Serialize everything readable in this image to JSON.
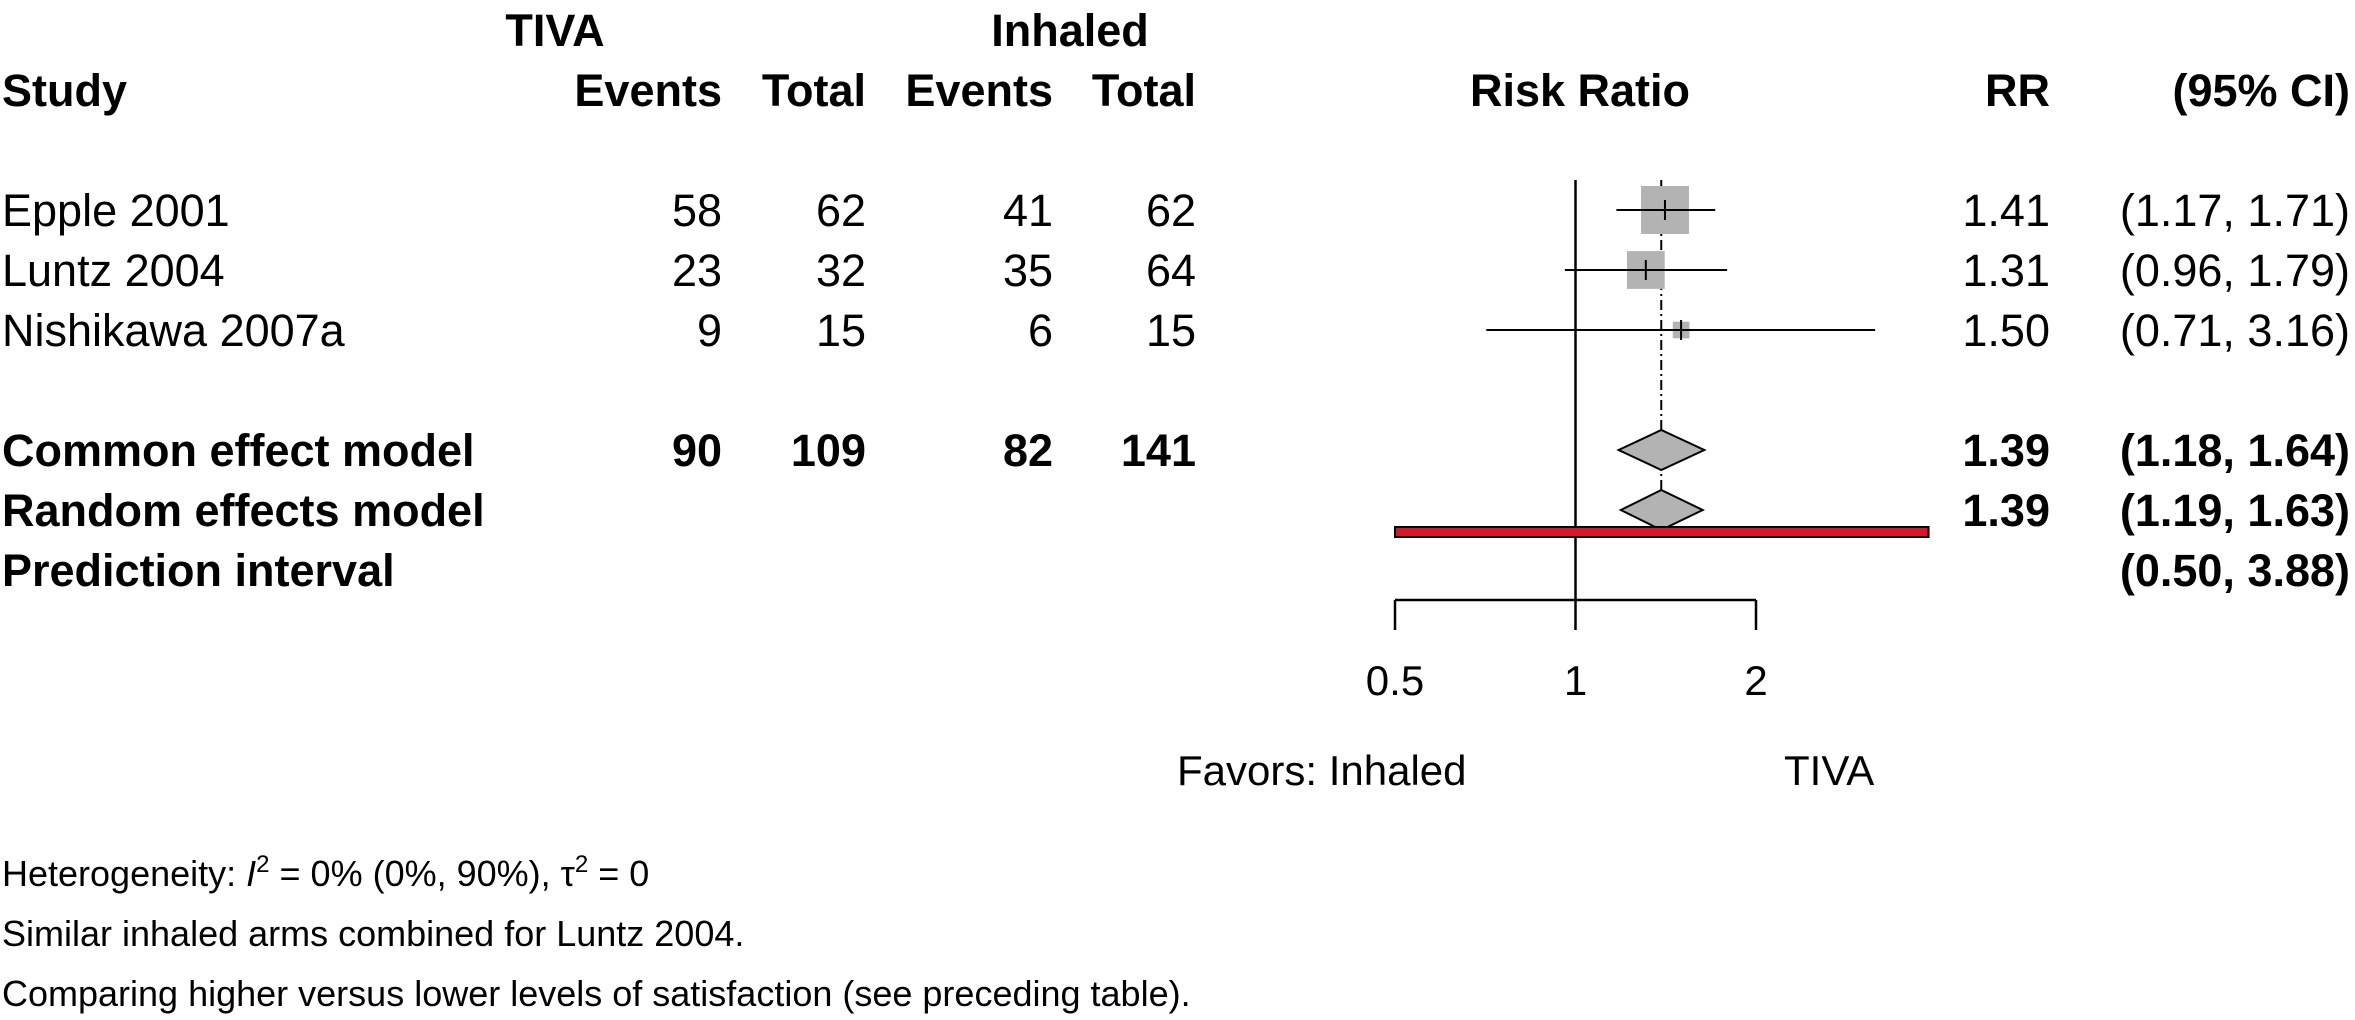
{
  "headers": {
    "tiva": "TIVA",
    "inhaled": "Inhaled",
    "study": "Study",
    "events1": "Events",
    "total1": "Total",
    "events2": "Events",
    "total2": "Total",
    "risk_ratio": "Risk Ratio",
    "rr": "RR",
    "ci": "(95% CI)"
  },
  "studies": [
    {
      "name": "Epple 2001",
      "e1": "58",
      "t1": "62",
      "e2": "41",
      "t2": "62",
      "rr": "1.41",
      "ci": "(1.17, 1.71)"
    },
    {
      "name": "Luntz 2004",
      "e1": "23",
      "t1": "32",
      "e2": "35",
      "t2": "64",
      "rr": "1.31",
      "ci": "(0.96, 1.79)"
    },
    {
      "name": "Nishikawa 2007a",
      "e1": "9",
      "t1": "15",
      "e2": "6",
      "t2": "15",
      "rr": "1.50",
      "ci": "(0.71, 3.16)"
    }
  ],
  "summary": [
    {
      "name": "Common effect model",
      "e1": "90",
      "t1": "109",
      "e2": "82",
      "t2": "141",
      "rr": "1.39",
      "ci": "(1.18, 1.64)"
    },
    {
      "name": "Random effects model",
      "e1": "",
      "t1": "",
      "e2": "",
      "t2": "",
      "rr": "1.39",
      "ci": "(1.19, 1.63)"
    },
    {
      "name": "Prediction interval",
      "e1": "",
      "t1": "",
      "e2": "",
      "t2": "",
      "rr": "",
      "ci": "(0.50, 3.88)"
    }
  ],
  "axis": {
    "labels": {
      "left": "Favors: Inhaled",
      "right": "TIVA"
    }
  },
  "footnotes": {
    "het_prefix": "Heterogeneity: ",
    "het_i": "I",
    "het_sup1": "2",
    "het_mid": " = 0% (0%, 90%), ",
    "het_tau": "τ",
    "het_sup2": "2",
    "het_end": " = 0",
    "line2": "Similar inhaled arms combined for Luntz 2004.",
    "line3": "Comparing higher versus lower levels of satisfaction (see preceding table)."
  },
  "colors": {
    "square": "#b3b3b3",
    "diamond": "#b3b3b3",
    "prediction": "#d9172a",
    "line": "#000000"
  },
  "chart_data": {
    "type": "forest",
    "title": "Risk Ratio",
    "xscale": "log",
    "xlim": [
      0.5,
      2
    ],
    "xticks": [
      0.5,
      1,
      2
    ],
    "xtick_labels": [
      "0.5",
      "1",
      "2"
    ],
    "reference_line": 1,
    "studies": [
      {
        "label": "Epple 2001",
        "rr": 1.41,
        "lower": 1.17,
        "upper": 1.71,
        "weight": 1.0
      },
      {
        "label": "Luntz 2004",
        "rr": 1.31,
        "lower": 0.96,
        "upper": 1.79,
        "weight": 0.62
      },
      {
        "label": "Nishikawa 2007a",
        "rr": 1.5,
        "lower": 0.71,
        "upper": 3.16,
        "weight": 0.12
      }
    ],
    "common_effect": {
      "rr": 1.39,
      "lower": 1.18,
      "upper": 1.64
    },
    "random_effects": {
      "rr": 1.39,
      "lower": 1.19,
      "upper": 1.63
    },
    "prediction_interval": {
      "lower": 0.5,
      "upper": 3.88
    }
  }
}
